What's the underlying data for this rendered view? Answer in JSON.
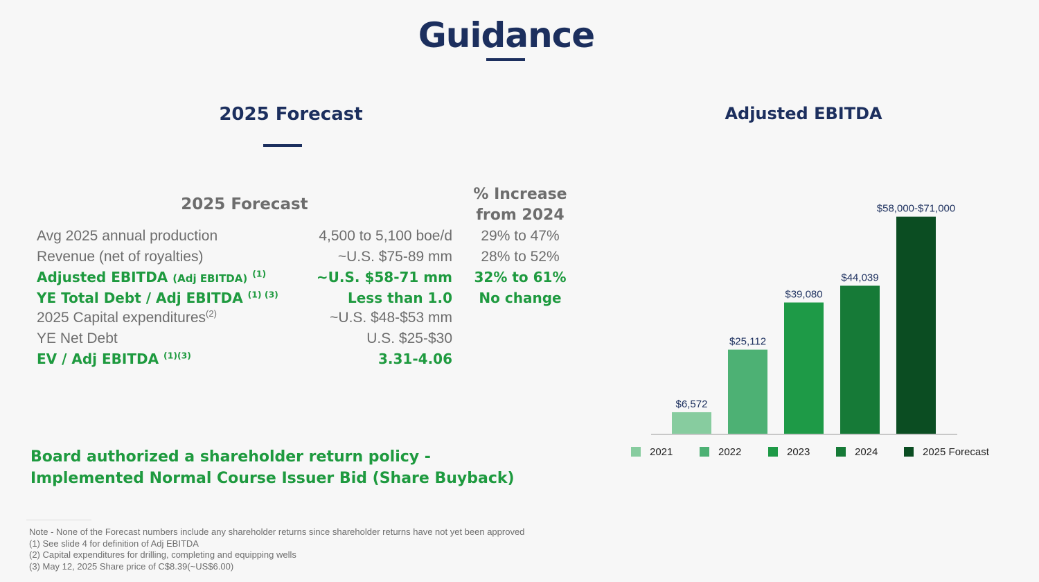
{
  "title": "Guidance",
  "forecast": {
    "heading": "2025 Forecast",
    "table_head_left": "2025 Forecast",
    "table_head_right_line1": "% Increase",
    "table_head_right_line2": "from 2024",
    "rows": [
      {
        "label": "Avg 2025 annual production",
        "value": "4,500 to 5,100 boe/d",
        "pct": "29% to 47%"
      },
      {
        "label": "Revenue (net of royalties)",
        "value": "~U.S. $75-89 mm",
        "pct": "28% to 52%"
      },
      {
        "label": "Adjusted EBITDA",
        "label_small": "(Adj EBITDA)",
        "sup": "(1)",
        "value": "~U.S. $58-71 mm",
        "pct": "32% to 61%"
      },
      {
        "label": "YE Total Debt / Adj EBITDA",
        "sup": "(1) (3)",
        "value": "Less than 1.0",
        "pct": "No change"
      },
      {
        "label": "2025 Capital expenditures",
        "sup": "(2)",
        "value": "~U.S. $48-$53 mm",
        "pct": ""
      },
      {
        "label": "YE Net Debt",
        "value": "U.S. $25-$30",
        "pct": ""
      },
      {
        "label": "EV / Adj EBITDA",
        "sup": "(1)(3)",
        "value": "3.31-4.06",
        "pct": ""
      }
    ]
  },
  "board": {
    "line1": "Board authorized a shareholder return policy -",
    "line2": "Implemented Normal Course Issuer Bid (Share Buyback)"
  },
  "notes": [
    "Note - None of the Forecast numbers include any shareholder returns since shareholder returns have not yet been approved",
    "(1) See slide 4 for definition of Adj EBITDA",
    "(2) Capital expenditures for drilling, completing and equipping wells",
    "(3) May 12, 2025 Share price of C$8.39(~US$6.00)"
  ],
  "chart_data": {
    "type": "bar",
    "title": "Adjusted EBITDA",
    "categories": [
      "2021",
      "2022",
      "2023",
      "2024",
      "2025 Forecast"
    ],
    "values": [
      6572,
      25112,
      39080,
      44039,
      64500
    ],
    "value_range_2025": [
      58000,
      71000
    ],
    "data_labels": [
      "$6,572",
      "$25,112",
      "$39,080",
      "$44,039",
      "$58,000-$71,000"
    ],
    "colors": [
      "#87cc9f",
      "#4db174",
      "#1e9a47",
      "#167a37",
      "#0b4d22"
    ],
    "ylim": [
      0,
      71000
    ],
    "legend": "bottom",
    "grid": false
  }
}
